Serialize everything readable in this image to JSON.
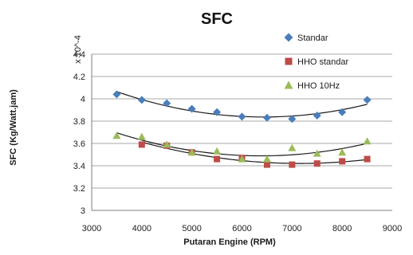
{
  "chart_data": {
    "type": "scatter",
    "title": "SFC",
    "xlabel": "Putaran Engine (RPM)",
    "ylabel": "SFC (Kg/Watt.jam)",
    "y_multiplier_label": "x 10^-4",
    "xlim": [
      3000,
      9000
    ],
    "ylim": [
      3,
      4.4
    ],
    "xticks": [
      "3000",
      "4000",
      "5000",
      "6000",
      "7000",
      "8000",
      "9000"
    ],
    "yticks": [
      "3",
      "3.2",
      "3.4",
      "3.6",
      "3.8",
      "4",
      "4.2",
      "4.4"
    ],
    "grid": "horizontal",
    "legend_position": "top-right",
    "trendline": "polynomial",
    "series": [
      {
        "name": "Standar",
        "marker": "diamond",
        "color": "#4a7ebb",
        "x": [
          3500,
          4000,
          4500,
          5000,
          5500,
          6000,
          6500,
          7000,
          7500,
          8000,
          8500
        ],
        "y": [
          4.04,
          3.99,
          3.96,
          3.91,
          3.88,
          3.84,
          3.83,
          3.82,
          3.85,
          3.88,
          3.99
        ]
      },
      {
        "name": "HHO standar",
        "marker": "square",
        "color": "#be4b48",
        "x": [
          4000,
          4500,
          5000,
          5500,
          6000,
          6500,
          7000,
          7500,
          8000,
          8500
        ],
        "y": [
          3.59,
          3.58,
          3.52,
          3.46,
          3.47,
          3.41,
          3.41,
          3.42,
          3.44,
          3.46
        ]
      },
      {
        "name": "HHO 10Hz",
        "marker": "triangle",
        "color": "#9bbb59",
        "x": [
          3500,
          4000,
          4500,
          5000,
          5500,
          6000,
          6500,
          7000,
          7500,
          8000,
          8500
        ],
        "y": [
          3.67,
          3.66,
          3.59,
          3.52,
          3.53,
          3.46,
          3.46,
          3.56,
          3.51,
          3.52,
          3.62
        ]
      }
    ]
  }
}
